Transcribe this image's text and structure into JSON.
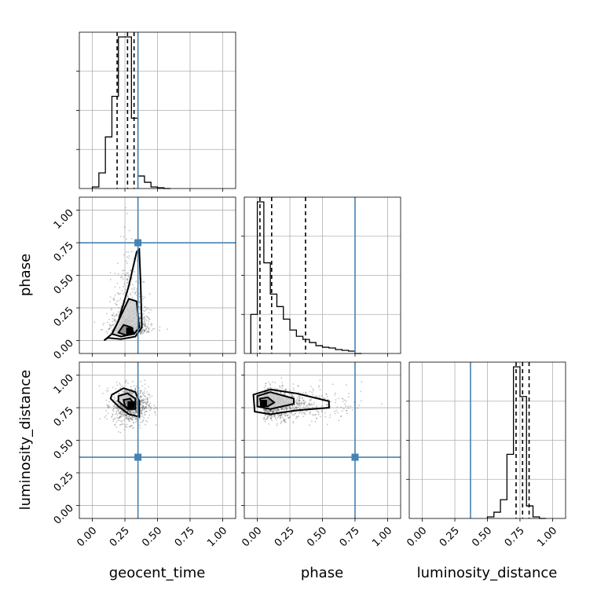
{
  "chart_data": {
    "type": "corner",
    "parameters": [
      "geocent_time",
      "phase",
      "luminosity_distance"
    ],
    "tick_labels": [
      "0.00",
      "0.25",
      "0.50",
      "0.75",
      "1.00"
    ],
    "axis_range": [
      -0.1,
      1.1
    ],
    "tick_values": [
      0.0,
      0.25,
      0.5,
      0.75,
      1.0
    ],
    "grid": true,
    "truth_color": "#4682b4",
    "truths": {
      "geocent_time": 0.35,
      "phase": 0.75,
      "luminosity_distance": 0.37
    },
    "quantiles": {
      "geocent_time": [
        0.19,
        0.27,
        0.32
      ],
      "phase": [
        0.02,
        0.11,
        0.37
      ],
      "luminosity_distance": [
        0.72,
        0.77,
        0.82
      ]
    },
    "histograms": {
      "geocent_time": {
        "edges": [
          0.0,
          0.05,
          0.1,
          0.15,
          0.2,
          0.25,
          0.3,
          0.35,
          0.4,
          0.45,
          0.5,
          0.55,
          0.6
        ],
        "counts": [
          0.01,
          0.1,
          0.33,
          0.59,
          0.97,
          0.97,
          0.45,
          0.08,
          0.04,
          0.01,
          0.005,
          0.0
        ]
      },
      "phase": {
        "edges": [
          -0.05,
          0.0,
          0.05,
          0.1,
          0.15,
          0.2,
          0.25,
          0.3,
          0.35,
          0.4,
          0.45,
          0.5,
          0.55,
          0.6,
          0.65,
          0.7,
          0.75,
          0.8
        ],
        "counts": [
          0.25,
          0.97,
          0.58,
          0.38,
          0.3,
          0.22,
          0.15,
          0.11,
          0.09,
          0.07,
          0.05,
          0.04,
          0.035,
          0.025,
          0.02,
          0.015,
          0.0
        ]
      },
      "luminosity_distance": {
        "edges": [
          0.5,
          0.55,
          0.6,
          0.65,
          0.7,
          0.75,
          0.8,
          0.85,
          0.9,
          0.95
        ],
        "counts": [
          0.01,
          0.04,
          0.12,
          0.41,
          0.97,
          0.78,
          0.08,
          0.01,
          0.0
        ]
      }
    },
    "contours": {
      "phase_vs_geocent_time": {
        "outer": [
          [
            0.09,
            0.0
          ],
          [
            0.15,
            0.05
          ],
          [
            0.2,
            0.15
          ],
          [
            0.28,
            0.42
          ],
          [
            0.34,
            0.68
          ],
          [
            0.36,
            0.7
          ],
          [
            0.37,
            0.45
          ],
          [
            0.38,
            0.1
          ],
          [
            0.33,
            0.03
          ],
          [
            0.22,
            0.01
          ],
          [
            0.12,
            0.02
          ]
        ],
        "mid": [
          [
            0.15,
            0.05
          ],
          [
            0.2,
            0.15
          ],
          [
            0.28,
            0.32
          ],
          [
            0.34,
            0.3
          ],
          [
            0.36,
            0.1
          ],
          [
            0.32,
            0.05
          ],
          [
            0.22,
            0.03
          ]
        ],
        "inner": [
          [
            0.2,
            0.06
          ],
          [
            0.24,
            0.12
          ],
          [
            0.3,
            0.1
          ],
          [
            0.32,
            0.05
          ],
          [
            0.26,
            0.04
          ]
        ]
      },
      "luminosity_distance_vs_geocent_time": {
        "outer": [
          [
            0.15,
            0.85
          ],
          [
            0.24,
            0.9
          ],
          [
            0.33,
            0.87
          ],
          [
            0.36,
            0.8
          ],
          [
            0.36,
            0.68
          ],
          [
            0.28,
            0.7
          ],
          [
            0.2,
            0.76
          ],
          [
            0.14,
            0.82
          ]
        ],
        "mid": [
          [
            0.2,
            0.84
          ],
          [
            0.27,
            0.86
          ],
          [
            0.33,
            0.82
          ],
          [
            0.33,
            0.74
          ],
          [
            0.27,
            0.74
          ],
          [
            0.2,
            0.8
          ]
        ],
        "inner": [
          [
            0.24,
            0.81
          ],
          [
            0.29,
            0.82
          ],
          [
            0.32,
            0.78
          ],
          [
            0.29,
            0.74
          ],
          [
            0.25,
            0.76
          ]
        ]
      },
      "luminosity_distance_vs_phase": {
        "outer": [
          [
            -0.03,
            0.85
          ],
          [
            0.1,
            0.89
          ],
          [
            0.3,
            0.86
          ],
          [
            0.55,
            0.8
          ],
          [
            0.55,
            0.75
          ],
          [
            0.3,
            0.73
          ],
          [
            0.1,
            0.7
          ],
          [
            -0.02,
            0.72
          ]
        ],
        "mid": [
          [
            0.0,
            0.84
          ],
          [
            0.1,
            0.87
          ],
          [
            0.28,
            0.82
          ],
          [
            0.28,
            0.78
          ],
          [
            0.1,
            0.74
          ],
          [
            0.0,
            0.76
          ]
        ],
        "inner": [
          [
            0.02,
            0.82
          ],
          [
            0.08,
            0.83
          ],
          [
            0.13,
            0.79
          ],
          [
            0.08,
            0.76
          ],
          [
            0.03,
            0.77
          ]
        ]
      }
    },
    "peak_cells": {
      "phase_vs_geocent_time": [
        0.29,
        0.07
      ],
      "luminosity_distance_vs_geocent_time": [
        0.3,
        0.77
      ],
      "luminosity_distance_vs_phase": [
        0.05,
        0.78
      ]
    },
    "scatter_clouds": {
      "phase_vs_geocent_time": {
        "x_mean": 0.29,
        "x_sd": 0.06,
        "y_mode": 0.05,
        "y_spread": 0.35,
        "n": 900
      },
      "luminosity_distance_vs_geocent_time": {
        "x_mean": 0.29,
        "x_sd": 0.07,
        "y_mean": 0.77,
        "y_sd": 0.07,
        "n": 900
      },
      "luminosity_distance_vs_phase": {
        "x_mode": 0.05,
        "x_spread": 0.3,
        "y_mean": 0.78,
        "y_sd": 0.06,
        "n": 1100
      }
    }
  }
}
